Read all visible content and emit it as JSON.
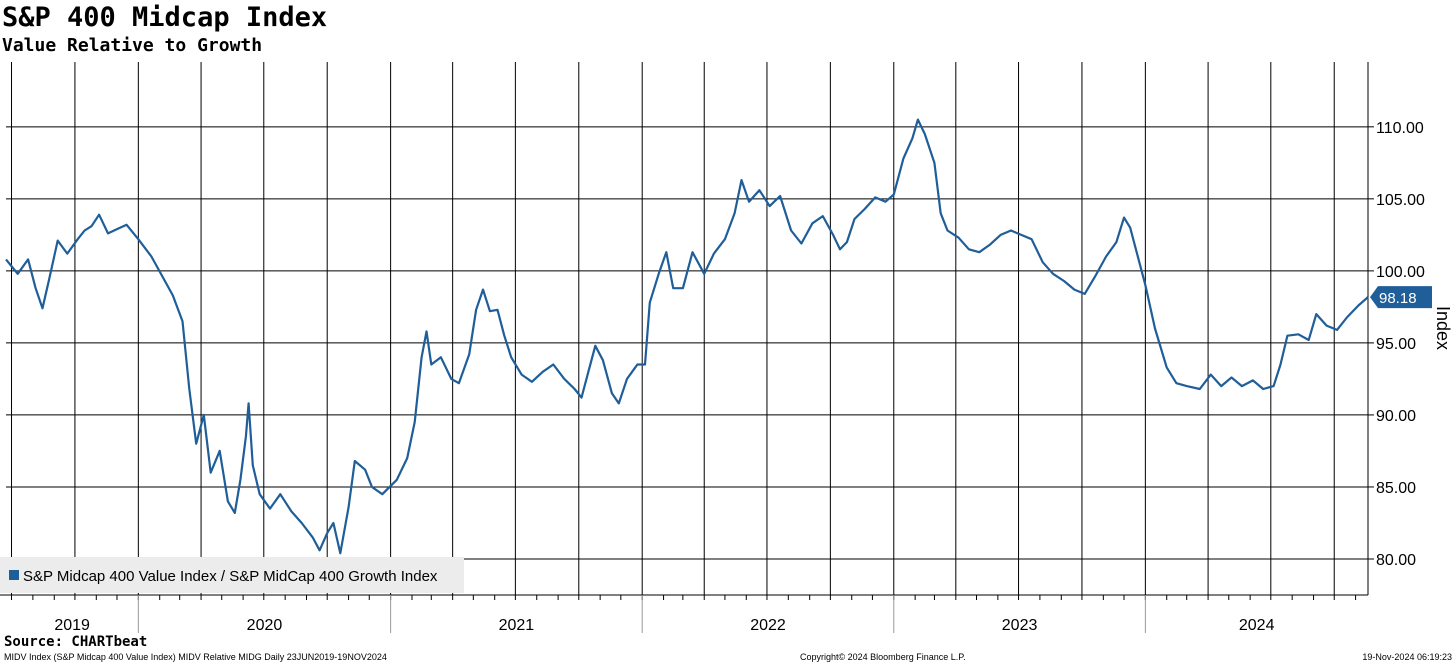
{
  "header": {
    "title": "S&P 400 Midcap Index",
    "subtitle": "Value Relative to Growth"
  },
  "footer": {
    "source": "Source: CHARTbeat",
    "description": "MIDV Index (S&P Midcap 400 Value Index) MIDV Relative MIDG  Daily 23JUN2019-19NOV2024",
    "copyright": "Copyright© 2024 Bloomberg Finance L.P.",
    "timestamp": "19-Nov-2024 06:19:23"
  },
  "colors": {
    "line": "#1f5e99",
    "grid": "#000000",
    "legend_bg": "#ececec",
    "label_bg": "#1f5e99"
  },
  "chart_data": {
    "type": "line",
    "title": "S&P 400 Midcap Index",
    "subtitle": "Value Relative to Growth",
    "ylabel": "Index",
    "ylim": [
      77.5,
      114.5
    ],
    "y_ticks": [
      "80.00",
      "85.00",
      "90.00",
      "95.00",
      "100.00",
      "105.00",
      "110.00"
    ],
    "x_categories": [
      "2019",
      "2020",
      "2021",
      "2022",
      "2023",
      "2024"
    ],
    "x_start": "2019-06-23",
    "x_end": "2024-11-19",
    "legend_position": "bottom-left",
    "grid": true,
    "last_value_label": "98.18",
    "series": [
      {
        "name": "S&P Midcap 400 Value Index / S&P MidCap 400 Growth Index",
        "points": [
          [
            "2019-06-23",
            100.8
          ],
          [
            "2019-07-10",
            99.8
          ],
          [
            "2019-07-25",
            100.8
          ],
          [
            "2019-08-05",
            98.8
          ],
          [
            "2019-08-15",
            97.4
          ],
          [
            "2019-08-25",
            99.5
          ],
          [
            "2019-09-06",
            102.1
          ],
          [
            "2019-09-20",
            101.2
          ],
          [
            "2019-10-05",
            102.2
          ],
          [
            "2019-10-15",
            102.8
          ],
          [
            "2019-10-25",
            103.1
          ],
          [
            "2019-11-05",
            103.9
          ],
          [
            "2019-11-18",
            102.6
          ],
          [
            "2019-12-01",
            102.9
          ],
          [
            "2019-12-15",
            103.2
          ],
          [
            "2020-01-01",
            102.2
          ],
          [
            "2020-01-20",
            101.0
          ],
          [
            "2020-02-05",
            99.6
          ],
          [
            "2020-02-20",
            98.3
          ],
          [
            "2020-03-05",
            96.5
          ],
          [
            "2020-03-15",
            91.8
          ],
          [
            "2020-03-25",
            88.0
          ],
          [
            "2020-04-05",
            90.0
          ],
          [
            "2020-04-15",
            86.0
          ],
          [
            "2020-04-28",
            87.5
          ],
          [
            "2020-05-10",
            84.0
          ],
          [
            "2020-05-20",
            83.2
          ],
          [
            "2020-05-28",
            85.5
          ],
          [
            "2020-06-05",
            88.5
          ],
          [
            "2020-06-09",
            90.8
          ],
          [
            "2020-06-15",
            86.5
          ],
          [
            "2020-06-25",
            84.5
          ],
          [
            "2020-07-10",
            83.5
          ],
          [
            "2020-07-25",
            84.5
          ],
          [
            "2020-08-10",
            83.3
          ],
          [
            "2020-08-25",
            82.5
          ],
          [
            "2020-09-10",
            81.5
          ],
          [
            "2020-09-20",
            80.6
          ],
          [
            "2020-10-01",
            81.8
          ],
          [
            "2020-10-10",
            82.5
          ],
          [
            "2020-10-20",
            80.4
          ],
          [
            "2020-11-01",
            83.6
          ],
          [
            "2020-11-10",
            86.8
          ],
          [
            "2020-11-25",
            86.2
          ],
          [
            "2020-12-05",
            85.0
          ],
          [
            "2020-12-20",
            84.5
          ],
          [
            "2021-01-10",
            85.5
          ],
          [
            "2021-01-25",
            87.0
          ],
          [
            "2021-02-05",
            89.5
          ],
          [
            "2021-02-15",
            94.0
          ],
          [
            "2021-02-22",
            95.8
          ],
          [
            "2021-03-01",
            93.5
          ],
          [
            "2021-03-15",
            94.0
          ],
          [
            "2021-03-30",
            92.5
          ],
          [
            "2021-04-10",
            92.2
          ],
          [
            "2021-04-25",
            94.2
          ],
          [
            "2021-05-05",
            97.3
          ],
          [
            "2021-05-15",
            98.7
          ],
          [
            "2021-05-25",
            97.2
          ],
          [
            "2021-06-05",
            97.3
          ],
          [
            "2021-06-15",
            95.5
          ],
          [
            "2021-06-25",
            94.0
          ],
          [
            "2021-07-10",
            92.8
          ],
          [
            "2021-07-25",
            92.3
          ],
          [
            "2021-08-10",
            93.0
          ],
          [
            "2021-08-25",
            93.5
          ],
          [
            "2021-09-10",
            92.5
          ],
          [
            "2021-09-25",
            91.8
          ],
          [
            "2021-10-05",
            91.2
          ],
          [
            "2021-10-15",
            93.0
          ],
          [
            "2021-10-25",
            94.8
          ],
          [
            "2021-11-05",
            93.8
          ],
          [
            "2021-11-18",
            91.5
          ],
          [
            "2021-11-28",
            90.8
          ],
          [
            "2021-12-10",
            92.5
          ],
          [
            "2021-12-25",
            93.5
          ],
          [
            "2022-01-05",
            93.5
          ],
          [
            "2022-01-12",
            97.8
          ],
          [
            "2022-01-25",
            99.8
          ],
          [
            "2022-02-05",
            101.3
          ],
          [
            "2022-02-15",
            98.8
          ],
          [
            "2022-03-01",
            98.8
          ],
          [
            "2022-03-15",
            101.3
          ],
          [
            "2022-04-01",
            99.8
          ],
          [
            "2022-04-15",
            101.2
          ],
          [
            "2022-05-01",
            102.2
          ],
          [
            "2022-05-15",
            104.0
          ],
          [
            "2022-05-25",
            106.3
          ],
          [
            "2022-06-05",
            104.8
          ],
          [
            "2022-06-20",
            105.6
          ],
          [
            "2022-07-05",
            104.5
          ],
          [
            "2022-07-20",
            105.2
          ],
          [
            "2022-08-05",
            102.8
          ],
          [
            "2022-08-20",
            101.9
          ],
          [
            "2022-09-05",
            103.3
          ],
          [
            "2022-09-20",
            103.8
          ],
          [
            "2022-10-05",
            102.5
          ],
          [
            "2022-10-15",
            101.5
          ],
          [
            "2022-10-25",
            102.0
          ],
          [
            "2022-11-05",
            103.6
          ],
          [
            "2022-11-20",
            104.3
          ],
          [
            "2022-12-05",
            105.1
          ],
          [
            "2022-12-20",
            104.8
          ],
          [
            "2023-01-01",
            105.3
          ],
          [
            "2023-01-15",
            107.8
          ],
          [
            "2023-01-28",
            109.2
          ],
          [
            "2023-02-05",
            110.5
          ],
          [
            "2023-02-15",
            109.5
          ],
          [
            "2023-03-01",
            107.5
          ],
          [
            "2023-03-10",
            104.0
          ],
          [
            "2023-03-20",
            102.8
          ],
          [
            "2023-04-05",
            102.3
          ],
          [
            "2023-04-20",
            101.5
          ],
          [
            "2023-05-05",
            101.3
          ],
          [
            "2023-05-20",
            101.8
          ],
          [
            "2023-06-05",
            102.5
          ],
          [
            "2023-06-20",
            102.8
          ],
          [
            "2023-07-05",
            102.5
          ],
          [
            "2023-07-20",
            102.2
          ],
          [
            "2023-08-05",
            100.6
          ],
          [
            "2023-08-20",
            99.8
          ],
          [
            "2023-09-05",
            99.3
          ],
          [
            "2023-09-20",
            98.7
          ],
          [
            "2023-10-05",
            98.4
          ],
          [
            "2023-10-20",
            99.6
          ],
          [
            "2023-11-05",
            101.0
          ],
          [
            "2023-11-20",
            102.0
          ],
          [
            "2023-12-01",
            103.7
          ],
          [
            "2023-12-10",
            103.0
          ],
          [
            "2024-01-01",
            99.0
          ],
          [
            "2024-01-15",
            96.0
          ],
          [
            "2024-02-01",
            93.3
          ],
          [
            "2024-02-15",
            92.2
          ],
          [
            "2024-03-01",
            92.0
          ],
          [
            "2024-03-20",
            91.8
          ],
          [
            "2024-04-05",
            92.8
          ],
          [
            "2024-04-20",
            92.0
          ],
          [
            "2024-05-05",
            92.6
          ],
          [
            "2024-05-20",
            92.0
          ],
          [
            "2024-06-05",
            92.4
          ],
          [
            "2024-06-20",
            91.8
          ],
          [
            "2024-07-05",
            92.0
          ],
          [
            "2024-07-15",
            93.5
          ],
          [
            "2024-07-25",
            95.5
          ],
          [
            "2024-08-10",
            95.6
          ],
          [
            "2024-08-25",
            95.2
          ],
          [
            "2024-09-05",
            97.0
          ],
          [
            "2024-09-20",
            96.2
          ],
          [
            "2024-10-05",
            95.9
          ],
          [
            "2024-10-20",
            96.8
          ],
          [
            "2024-11-05",
            97.6
          ],
          [
            "2024-11-19",
            98.18
          ]
        ]
      }
    ]
  }
}
